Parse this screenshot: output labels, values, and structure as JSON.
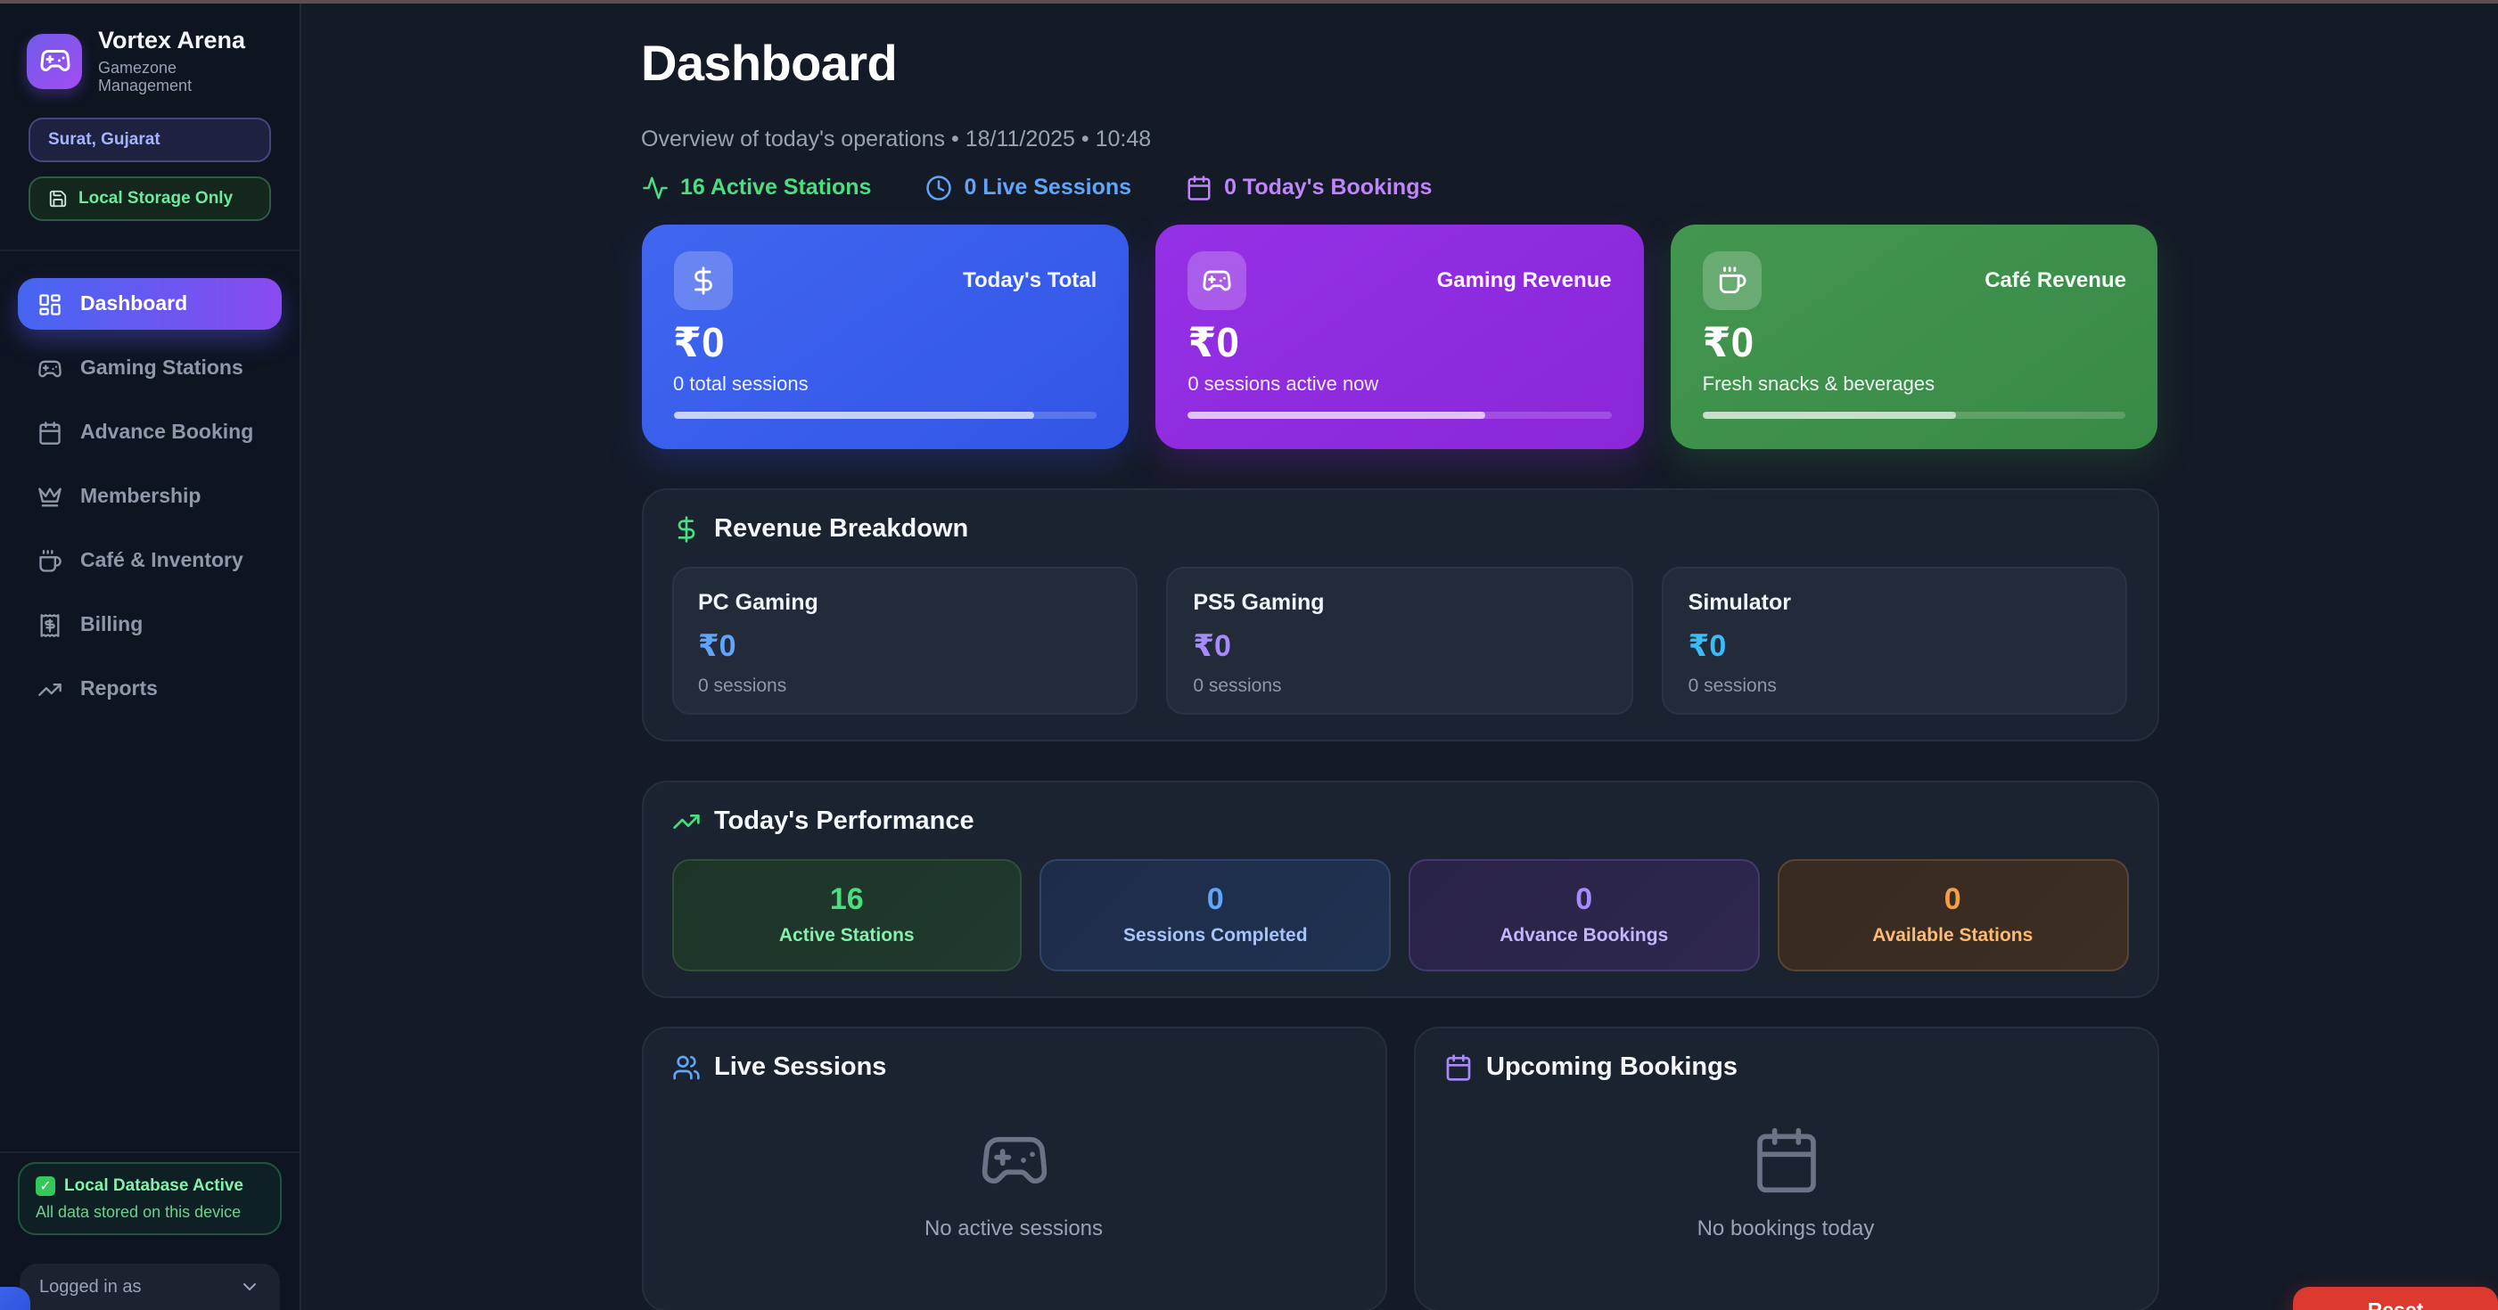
{
  "colors": {
    "accent_blue": "#4066f0",
    "accent_purple": "#9530e6",
    "accent_green": "#43964f",
    "status_green": "#4ade80",
    "status_blue": "#60a5fa",
    "status_violet": "#c084fc",
    "status_cyan": "#38bdf8",
    "status_orange": "#f59e42",
    "danger_red": "#dc3a2e"
  },
  "sidebar": {
    "brand": {
      "title": "Vortex Arena",
      "subtitle": "Gamezone Management",
      "logo_icon": "gamepad-icon"
    },
    "location_badge": {
      "label": "Surat, Gujarat"
    },
    "storage_badge": {
      "icon": "floppy-disk-icon",
      "label": "Local Storage Only"
    },
    "nav": [
      {
        "label": "Dashboard",
        "icon": "dashboard-grid-icon",
        "active": true
      },
      {
        "label": "Gaming Stations",
        "icon": "gamepad-icon",
        "active": false
      },
      {
        "label": "Advance Booking",
        "icon": "calendar-icon",
        "active": false
      },
      {
        "label": "Membership",
        "icon": "crown-icon",
        "active": false
      },
      {
        "label": "Café & Inventory",
        "icon": "coffee-cup-icon",
        "active": false
      },
      {
        "label": "Billing",
        "icon": "receipt-icon",
        "active": false
      },
      {
        "label": "Reports",
        "icon": "trending-up-icon",
        "active": false
      }
    ],
    "db_status": {
      "icon": "check-icon",
      "title": "Local Database Active",
      "subtitle": "All data stored on this device"
    },
    "account": {
      "label": "Logged in as",
      "icon": "chevron-down-icon"
    }
  },
  "header": {
    "title": "Dashboard",
    "meta": "Overview of today's operations • 18/11/2025 • 10:48",
    "quick_stats": [
      {
        "label": "16 Active Stations",
        "icon": "activity-icon",
        "color": "#4ade80"
      },
      {
        "label": "0 Live Sessions",
        "icon": "clock-icon",
        "color": "#60a5fa"
      },
      {
        "label": "0 Today's Bookings",
        "icon": "calendar-icon",
        "color": "#c084fc"
      }
    ]
  },
  "revenue_cards": [
    {
      "label": "Today's Total",
      "icon": "dollar-icon",
      "value": "₹0",
      "sub": "0 total sessions",
      "progress": 85
    },
    {
      "label": "Gaming Revenue",
      "icon": "gamepad-icon",
      "value": "₹0",
      "sub": "0 sessions active now",
      "progress": 70
    },
    {
      "label": "Café Revenue",
      "icon": "coffee-cup-icon",
      "value": "₹0",
      "sub": "Fresh snacks & beverages",
      "progress": 60
    }
  ],
  "revenue_breakdown": {
    "title": "Revenue Breakdown",
    "icon": "dollar-icon",
    "items": [
      {
        "name": "PC Gaming",
        "value": "₹0",
        "sessions": "0 sessions",
        "color": "#60a5fa"
      },
      {
        "name": "PS5 Gaming",
        "value": "₹0",
        "sessions": "0 sessions",
        "color": "#a78bfa"
      },
      {
        "name": "Simulator",
        "value": "₹0",
        "sessions": "0 sessions",
        "color": "#38bdf8"
      }
    ]
  },
  "performance": {
    "title": "Today's Performance",
    "icon": "trending-up-icon",
    "stats": [
      {
        "value": "16",
        "label": "Active Stations",
        "color": "green"
      },
      {
        "value": "0",
        "label": "Sessions Completed",
        "color": "blue"
      },
      {
        "value": "0",
        "label": "Advance Bookings",
        "color": "purple"
      },
      {
        "value": "0",
        "label": "Available Stations",
        "color": "orange"
      }
    ]
  },
  "live_sessions": {
    "title": "Live Sessions",
    "icon": "users-icon",
    "empty_icon": "gamepad-icon",
    "empty": "No active sessions"
  },
  "upcoming_bookings": {
    "title": "Upcoming Bookings",
    "icon": "calendar-icon",
    "empty_icon": "calendar-icon",
    "empty": "No bookings today"
  },
  "reset_button": {
    "label": "Reset Database"
  }
}
